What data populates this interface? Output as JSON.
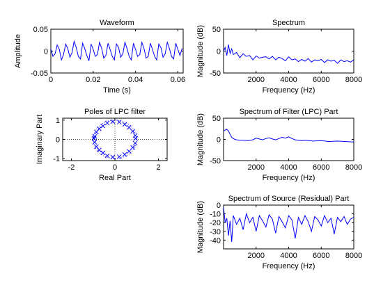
{
  "colors": {
    "line": "#0000ff",
    "axes": "#000000",
    "background": "#ffffff"
  },
  "chart_data": [
    {
      "id": "waveform",
      "type": "line",
      "title": "Waveform",
      "xlabel": "Time (s)",
      "ylabel": "Amplitude",
      "xlim": [
        0,
        0.0625
      ],
      "ylim": [
        -0.05,
        0.05
      ],
      "xticks": [
        0,
        0.02,
        0.04,
        0.06
      ],
      "xticklabels": [
        "0",
        "0.02",
        "0.04",
        "0.06"
      ],
      "yticks": [
        -0.05,
        0,
        0.05
      ],
      "yticklabels": [
        "-0.05",
        "0",
        "0.05"
      ],
      "grid": false,
      "series": [
        {
          "x": [
            0,
            0.001,
            0.002,
            0.003,
            0.004,
            0.005,
            0.006,
            0.007,
            0.008,
            0.009,
            0.01,
            0.011,
            0.012,
            0.013,
            0.014,
            0.015,
            0.016,
            0.017,
            0.018,
            0.019,
            0.02,
            0.021,
            0.022,
            0.023,
            0.024,
            0.025,
            0.026,
            0.027,
            0.028,
            0.029,
            0.03,
            0.031,
            0.032,
            0.033,
            0.034,
            0.035,
            0.036,
            0.037,
            0.038,
            0.039,
            0.04,
            0.041,
            0.042,
            0.043,
            0.044,
            0.045,
            0.046,
            0.047,
            0.048,
            0.049,
            0.05,
            0.051,
            0.052,
            0.053,
            0.054,
            0.055,
            0.056,
            0.057,
            0.058,
            0.059,
            0.06,
            0.061,
            0.062
          ],
          "y": [
            0.005,
            -0.012,
            -0.006,
            0.014,
            0.004,
            -0.02,
            -0.008,
            0.016,
            0.006,
            -0.014,
            -0.004,
            0.022,
            0.008,
            -0.012,
            -0.018,
            0.018,
            0.006,
            -0.01,
            -0.022,
            0.016,
            0.004,
            -0.012,
            -0.008,
            0.02,
            0.006,
            -0.016,
            -0.01,
            0.018,
            0.004,
            -0.012,
            -0.02,
            0.016,
            0.008,
            -0.014,
            -0.006,
            0.02,
            0.006,
            -0.012,
            -0.02,
            0.018,
            0.004,
            -0.012,
            -0.008,
            0.02,
            0.006,
            -0.016,
            -0.012,
            0.018,
            0.004,
            -0.012,
            -0.02,
            0.016,
            0.008,
            -0.014,
            -0.006,
            0.02,
            0.006,
            -0.012,
            -0.018,
            0.018,
            0.004,
            -0.01,
            0.006
          ]
        }
      ]
    },
    {
      "id": "spectrum",
      "type": "line",
      "title": "Spectrum",
      "xlabel": "Frequency (Hz)",
      "ylabel": "Magnitude (dB)",
      "xlim": [
        0,
        8000
      ],
      "ylim": [
        -50,
        50
      ],
      "xticks": [
        2000,
        4000,
        6000,
        8000
      ],
      "xticklabels": [
        "2000",
        "4000",
        "6000",
        "8000"
      ],
      "yticks": [
        -50,
        0,
        50
      ],
      "yticklabels": [
        "-50",
        "0",
        "50"
      ],
      "grid": false,
      "series": [
        {
          "x": [
            0,
            100,
            200,
            300,
            400,
            500,
            600,
            800,
            1000,
            1200,
            1400,
            1600,
            1800,
            2000,
            2200,
            2400,
            2600,
            2800,
            3000,
            3200,
            3400,
            3600,
            3800,
            4000,
            4200,
            4400,
            4600,
            4800,
            5000,
            5200,
            5400,
            5600,
            5800,
            6000,
            6200,
            6400,
            6600,
            6800,
            7000,
            7200,
            7400,
            7600,
            7800,
            8000
          ],
          "y": [
            0,
            8,
            -10,
            15,
            -5,
            5,
            -8,
            -3,
            -15,
            -6,
            -12,
            -10,
            -20,
            -11,
            -16,
            -14,
            -13,
            -18,
            -12,
            -20,
            -14,
            -17,
            -22,
            -13,
            -20,
            -18,
            -24,
            -19,
            -23,
            -17,
            -25,
            -20,
            -22,
            -19,
            -26,
            -20,
            -23,
            -21,
            -28,
            -20,
            -24,
            -22,
            -25,
            -20
          ]
        }
      ]
    },
    {
      "id": "poles",
      "type": "scatter",
      "title": "Poles of LPC filter",
      "xlabel": "Real Part",
      "ylabel": "Imaginary Part",
      "xlim": [
        -2.4,
        2.4
      ],
      "ylim": [
        -1.1,
        1.1
      ],
      "xticks": [
        -2,
        0,
        2
      ],
      "xticklabels": [
        "-2",
        "0",
        "2"
      ],
      "yticks": [
        -1,
        0,
        1
      ],
      "yticklabels": [
        "-1",
        "0",
        "1"
      ],
      "unit_circle": true,
      "grid": false,
      "series": [
        {
          "x": [
            0.2,
            0.2,
            0.45,
            0.45,
            0.65,
            0.65,
            0.82,
            0.82,
            0.93,
            0.93,
            -0.1,
            -0.1,
            -0.35,
            -0.35,
            -0.55,
            -0.55,
            -0.72,
            -0.72,
            -0.85,
            -0.85,
            -0.93,
            -0.93,
            0.95,
            -0.96
          ],
          "y": [
            0.9,
            -0.9,
            0.78,
            -0.78,
            0.62,
            -0.62,
            0.42,
            -0.42,
            0.2,
            -0.2,
            0.92,
            -0.92,
            0.85,
            -0.85,
            0.7,
            -0.7,
            0.55,
            -0.55,
            0.38,
            -0.38,
            0.15,
            -0.15,
            0.05,
            0.05
          ]
        }
      ]
    },
    {
      "id": "filter_spectrum",
      "type": "line",
      "title": "Spectrum of Filter (LPC) Part",
      "xlabel": "Frequency (Hz)",
      "ylabel": "Magnitude (dB)",
      "xlim": [
        0,
        8000
      ],
      "ylim": [
        -50,
        50
      ],
      "xticks": [
        2000,
        4000,
        6000,
        8000
      ],
      "xticklabels": [
        "2000",
        "4000",
        "6000",
        "8000"
      ],
      "yticks": [
        -50,
        0,
        50
      ],
      "yticklabels": [
        "-50",
        "0",
        "50"
      ],
      "grid": false,
      "series": [
        {
          "x": [
            0,
            100,
            200,
            300,
            400,
            500,
            600,
            700,
            800,
            1000,
            1200,
            1500,
            1800,
            2000,
            2200,
            2400,
            2600,
            2800,
            3000,
            3200,
            3400,
            3600,
            3800,
            4000,
            4200,
            4400,
            4600,
            4800,
            5000,
            5500,
            6000,
            6500,
            7000,
            7500,
            8000
          ],
          "y": [
            20,
            22,
            24,
            20,
            12,
            5,
            2,
            0,
            -1,
            -2,
            -2,
            -3,
            -1,
            3,
            1,
            -1,
            2,
            4,
            1,
            -1,
            2,
            5,
            3,
            6,
            2,
            -1,
            -2,
            -3,
            -2,
            -4,
            -3,
            -5,
            -4,
            -5,
            -6
          ]
        }
      ]
    },
    {
      "id": "residual_spectrum",
      "type": "line",
      "title": "Spectrum of Source (Residual) Part",
      "xlabel": "Frequency (Hz)",
      "ylabel": "Magnitude (dB)",
      "xlim": [
        0,
        8000
      ],
      "ylim": [
        -50,
        0
      ],
      "xticks": [
        2000,
        4000,
        6000,
        8000
      ],
      "xticklabels": [
        "2000",
        "4000",
        "6000",
        "8000"
      ],
      "yticks": [
        -40,
        -30,
        -20,
        -10,
        0
      ],
      "yticklabels": [
        "-40",
        "-30",
        "-20",
        "-10",
        "0"
      ],
      "grid": false,
      "series": [
        {
          "x": [
            0,
            100,
            200,
            300,
            400,
            500,
            600,
            800,
            1000,
            1200,
            1400,
            1600,
            1800,
            2000,
            2200,
            2400,
            2600,
            2800,
            3000,
            3200,
            3400,
            3600,
            3800,
            4000,
            4200,
            4400,
            4600,
            4800,
            5000,
            5200,
            5400,
            5600,
            5800,
            6000,
            6200,
            6400,
            6600,
            6800,
            7000,
            7200,
            7400,
            7600,
            7800,
            8000
          ],
          "y": [
            -2,
            -20,
            -15,
            -35,
            -18,
            -42,
            -12,
            -22,
            -15,
            -28,
            -10,
            -20,
            -14,
            -30,
            -12,
            -18,
            -25,
            -11,
            -16,
            -32,
            -13,
            -19,
            -26,
            -12,
            -17,
            -38,
            -14,
            -22,
            -12,
            -19,
            -30,
            -13,
            -17,
            -24,
            -12,
            -20,
            -15,
            -33,
            -14,
            -19,
            -13,
            -22,
            -16,
            -14
          ]
        }
      ]
    }
  ]
}
